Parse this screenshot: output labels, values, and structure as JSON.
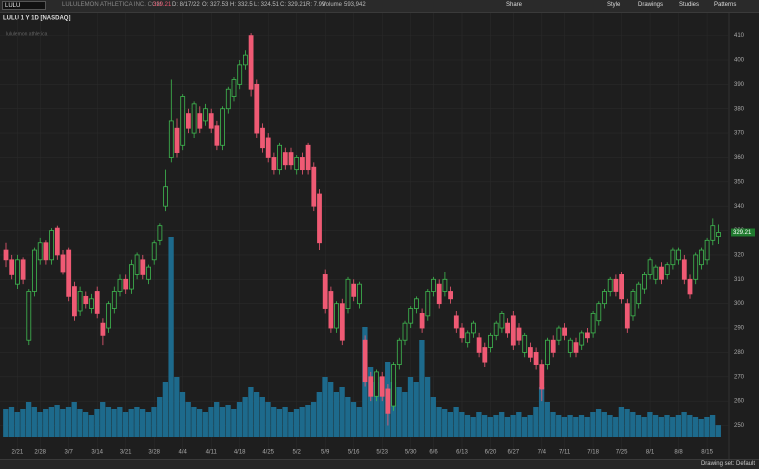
{
  "toolbar": {
    "symbol": "LULU",
    "company": "LULULEMON ATHLETICA INC. COM",
    "price": "329.21",
    "date": "D: 8/17/22",
    "open": "O: 327.53",
    "high": "H: 332.5",
    "low": "L: 324.51",
    "close": "C: 329.21",
    "range": "R: 7.99",
    "volume_label": "Volume",
    "volume": "593,942",
    "buttons": [
      "Share",
      "Style",
      "Drawings",
      "Studies",
      "Patterns"
    ]
  },
  "chart_header": {
    "title": "LULU 1 Y 1D [NASDAQ]",
    "watermark": "lululemon athletica"
  },
  "footer": {
    "drawing_set": "Drawing set: Default"
  },
  "chart_data": {
    "type": "candlestick",
    "categories": [
      null,
      null,
      "2/21",
      null,
      null,
      null,
      "2/28",
      null,
      null,
      null,
      null,
      "3/7",
      null,
      null,
      null,
      null,
      "3/14",
      null,
      null,
      null,
      null,
      "3/21",
      null,
      null,
      null,
      null,
      "3/28",
      null,
      null,
      null,
      null,
      "4/4",
      null,
      null,
      null,
      null,
      "4/11",
      null,
      null,
      null,
      null,
      "4/18",
      null,
      null,
      null,
      null,
      "4/25",
      null,
      null,
      null,
      null,
      "5/2",
      null,
      null,
      null,
      null,
      "5/9",
      null,
      null,
      null,
      null,
      "5/16",
      null,
      null,
      null,
      null,
      "5/23",
      null,
      null,
      null,
      null,
      "5/30",
      null,
      null,
      null,
      "6/6",
      null,
      null,
      null,
      null,
      "6/13",
      null,
      null,
      null,
      null,
      "6/20",
      null,
      null,
      null,
      "6/27",
      null,
      null,
      null,
      null,
      "7/4",
      null,
      null,
      null,
      "7/11",
      null,
      null,
      null,
      null,
      "7/18",
      null,
      null,
      null,
      null,
      "7/25",
      null,
      null,
      null,
      null,
      "8/1",
      null,
      null,
      null,
      null,
      "8/8",
      null,
      null,
      null,
      null,
      "8/15",
      null,
      null
    ],
    "open": [
      322,
      318,
      308,
      318,
      285,
      305,
      318,
      325,
      318,
      331,
      320,
      322,
      307,
      297,
      303,
      298,
      305,
      292,
      290,
      298,
      305,
      310,
      306,
      312,
      318,
      310,
      318,
      326,
      340,
      360,
      372,
      365,
      378,
      370,
      378,
      375,
      378,
      373,
      365,
      380,
      385,
      390,
      398,
      410,
      390,
      372,
      368,
      360,
      355,
      362,
      362,
      355,
      360,
      365,
      356,
      345,
      312,
      305,
      290,
      300,
      298,
      308,
      300,
      285,
      270,
      262,
      270,
      265,
      258,
      275,
      285,
      292,
      298,
      296,
      295,
      305,
      308,
      305,
      305,
      295,
      290,
      284,
      288,
      286,
      282,
      282,
      287,
      290,
      292,
      295,
      290,
      280,
      282,
      280,
      275,
      275,
      285,
      285,
      290,
      280,
      284,
      283,
      288,
      288,
      293,
      300,
      305,
      310,
      312,
      300,
      295,
      300,
      306,
      312,
      310,
      315,
      312,
      316,
      318,
      318,
      310,
      310,
      316,
      318,
      326,
      327.53
    ],
    "high": [
      325,
      320,
      320,
      319,
      306,
      323,
      327,
      326,
      331,
      332,
      322,
      323,
      309,
      307,
      305,
      304,
      307,
      294,
      301,
      307,
      312,
      312,
      318,
      321,
      320,
      316,
      326,
      333,
      355,
      392,
      376,
      386,
      380,
      383,
      381,
      382,
      380,
      375,
      381,
      389,
      393,
      400,
      404,
      411,
      392,
      374,
      370,
      362,
      366,
      364,
      364,
      361,
      362,
      366,
      358,
      347,
      314,
      307,
      301,
      302,
      311,
      310,
      309,
      287,
      272,
      273,
      272,
      267,
      276,
      286,
      293,
      299,
      303,
      298,
      306,
      311,
      310,
      313,
      307,
      297,
      292,
      289,
      293,
      288,
      284,
      288,
      293,
      297,
      294,
      297,
      292,
      288,
      284,
      282,
      277,
      286,
      287,
      291,
      292,
      286,
      286,
      289,
      290,
      297,
      301,
      306,
      311,
      312,
      313,
      302,
      306,
      309,
      313,
      319,
      316,
      317,
      317,
      323,
      323,
      320,
      312,
      321,
      323,
      327,
      335,
      332.5
    ],
    "low": [
      315,
      310,
      306,
      308,
      283,
      303,
      316,
      316,
      316,
      318,
      312,
      301,
      293,
      295,
      298,
      296,
      294,
      283,
      288,
      296,
      303,
      304,
      304,
      310,
      310,
      308,
      316,
      324,
      338,
      358,
      360,
      363,
      370,
      368,
      370,
      373,
      370,
      363,
      363,
      378,
      383,
      388,
      396,
      385,
      368,
      362,
      358,
      353,
      353,
      355,
      355,
      353,
      353,
      353,
      338,
      322,
      296,
      288,
      288,
      283,
      296,
      301,
      298,
      266,
      260,
      260,
      260,
      250,
      256,
      273,
      283,
      290,
      296,
      288,
      293,
      303,
      298,
      303,
      300,
      288,
      284,
      282,
      286,
      278,
      274,
      280,
      285,
      288,
      286,
      281,
      283,
      278,
      276,
      273,
      260,
      273,
      278,
      283,
      285,
      278,
      278,
      281,
      284,
      286,
      291,
      298,
      303,
      303,
      300,
      288,
      293,
      298,
      304,
      310,
      308,
      308,
      310,
      314,
      316,
      308,
      302,
      308,
      314,
      316,
      324,
      324.51
    ],
    "close": [
      318,
      312,
      318,
      310,
      305,
      322,
      325,
      318,
      330,
      320,
      313,
      303,
      295,
      305,
      300,
      302,
      296,
      287,
      300,
      305,
      310,
      306,
      316,
      320,
      312,
      315,
      325,
      332,
      348,
      375,
      362,
      385,
      372,
      382,
      372,
      380,
      372,
      365,
      380,
      388,
      392,
      398,
      402,
      388,
      370,
      364,
      360,
      355,
      365,
      357,
      357,
      360,
      355,
      355,
      340,
      325,
      298,
      290,
      300,
      285,
      310,
      303,
      308,
      268,
      262,
      272,
      262,
      255,
      275,
      285,
      292,
      298,
      302,
      290,
      305,
      310,
      300,
      310,
      302,
      290,
      286,
      288,
      292,
      280,
      276,
      287,
      292,
      296,
      288,
      283,
      285,
      287,
      278,
      275,
      265,
      285,
      280,
      290,
      287,
      285,
      280,
      288,
      286,
      296,
      300,
      305,
      310,
      305,
      302,
      290,
      305,
      308,
      312,
      318,
      315,
      310,
      316,
      322,
      322,
      310,
      304,
      320,
      322,
      326,
      332,
      329.21
    ],
    "volume": [
      1400000,
      1500000,
      1250000,
      1400000,
      1750000,
      1500000,
      1250000,
      1400000,
      1500000,
      1600000,
      1400000,
      1500000,
      1750000,
      1400000,
      1250000,
      1100000,
      1400000,
      1750000,
      1500000,
      1400000,
      1500000,
      1250000,
      1400000,
      1500000,
      1400000,
      1250000,
      1500000,
      2000000,
      2750000,
      10000000,
      3000000,
      2250000,
      1750000,
      1500000,
      1400000,
      1250000,
      1500000,
      1750000,
      1500000,
      1600000,
      1400000,
      1750000,
      2000000,
      2500000,
      2250000,
      2000000,
      1750000,
      1500000,
      1400000,
      1500000,
      1250000,
      1400000,
      1500000,
      1600000,
      1750000,
      2250000,
      3000000,
      2750000,
      2250000,
      2500000,
      2000000,
      1750000,
      1500000,
      5500000,
      3500000,
      2750000,
      3000000,
      3750000,
      2750000,
      2500000,
      2250000,
      3000000,
      2750000,
      4850000,
      3000000,
      2000000,
      1500000,
      1400000,
      1250000,
      1500000,
      1250000,
      1100000,
      1000000,
      1250000,
      1100000,
      1000000,
      1100000,
      1250000,
      1000000,
      1100000,
      1250000,
      1000000,
      1100000,
      1500000,
      2500000,
      1750000,
      1250000,
      1100000,
      1000000,
      1100000,
      1000000,
      1100000,
      1000000,
      1250000,
      1400000,
      1250000,
      1100000,
      1000000,
      1500000,
      1400000,
      1250000,
      1100000,
      1000000,
      1250000,
      1100000,
      1000000,
      1100000,
      1000000,
      1100000,
      1250000,
      1100000,
      1000000,
      900000,
      1000000,
      1100000,
      593942
    ],
    "up_color": "#3fb950",
    "down_color": "#ef5a74",
    "volume_color": "#1d6a8c",
    "ylim": [
      242,
      416
    ],
    "yticks": [
      250,
      260,
      270,
      280,
      290,
      300,
      310,
      320,
      330,
      340,
      350,
      360,
      370,
      380,
      390,
      400,
      410
    ],
    "grid": true
  }
}
